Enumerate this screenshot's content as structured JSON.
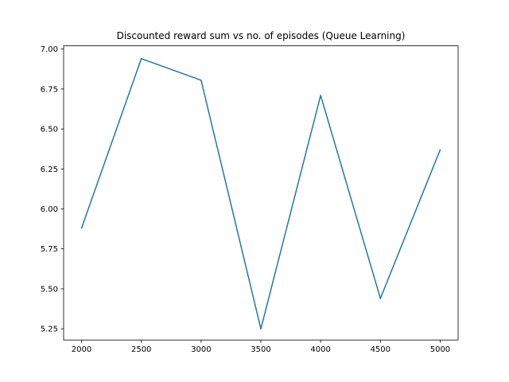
{
  "chart_data": {
    "type": "line",
    "title": "Discounted reward sum vs no. of episodes (Queue Learning)",
    "xlabel": "",
    "ylabel": "",
    "x": [
      2000,
      2500,
      3000,
      3500,
      4000,
      4500,
      5000
    ],
    "series": [
      {
        "values": [
          5.88,
          6.94,
          6.805,
          5.25,
          6.71,
          5.44,
          6.37
        ],
        "color": "#1f77b4"
      }
    ],
    "xlim": [
      1850,
      5150
    ],
    "ylim": [
      5.18,
      7.02
    ],
    "xticks": [
      2000,
      2500,
      3000,
      3500,
      4000,
      4500,
      5000
    ],
    "xtick_labels": [
      "2000",
      "2500",
      "3000",
      "3500",
      "4000",
      "4500",
      "5000"
    ],
    "yticks": [
      5.25,
      5.5,
      5.75,
      6.0,
      6.25,
      6.5,
      6.75,
      7.0
    ],
    "ytick_labels": [
      "5.25",
      "5.50",
      "5.75",
      "6.00",
      "6.25",
      "6.50",
      "6.75",
      "7.00"
    ],
    "grid": false,
    "legend": "none"
  }
}
